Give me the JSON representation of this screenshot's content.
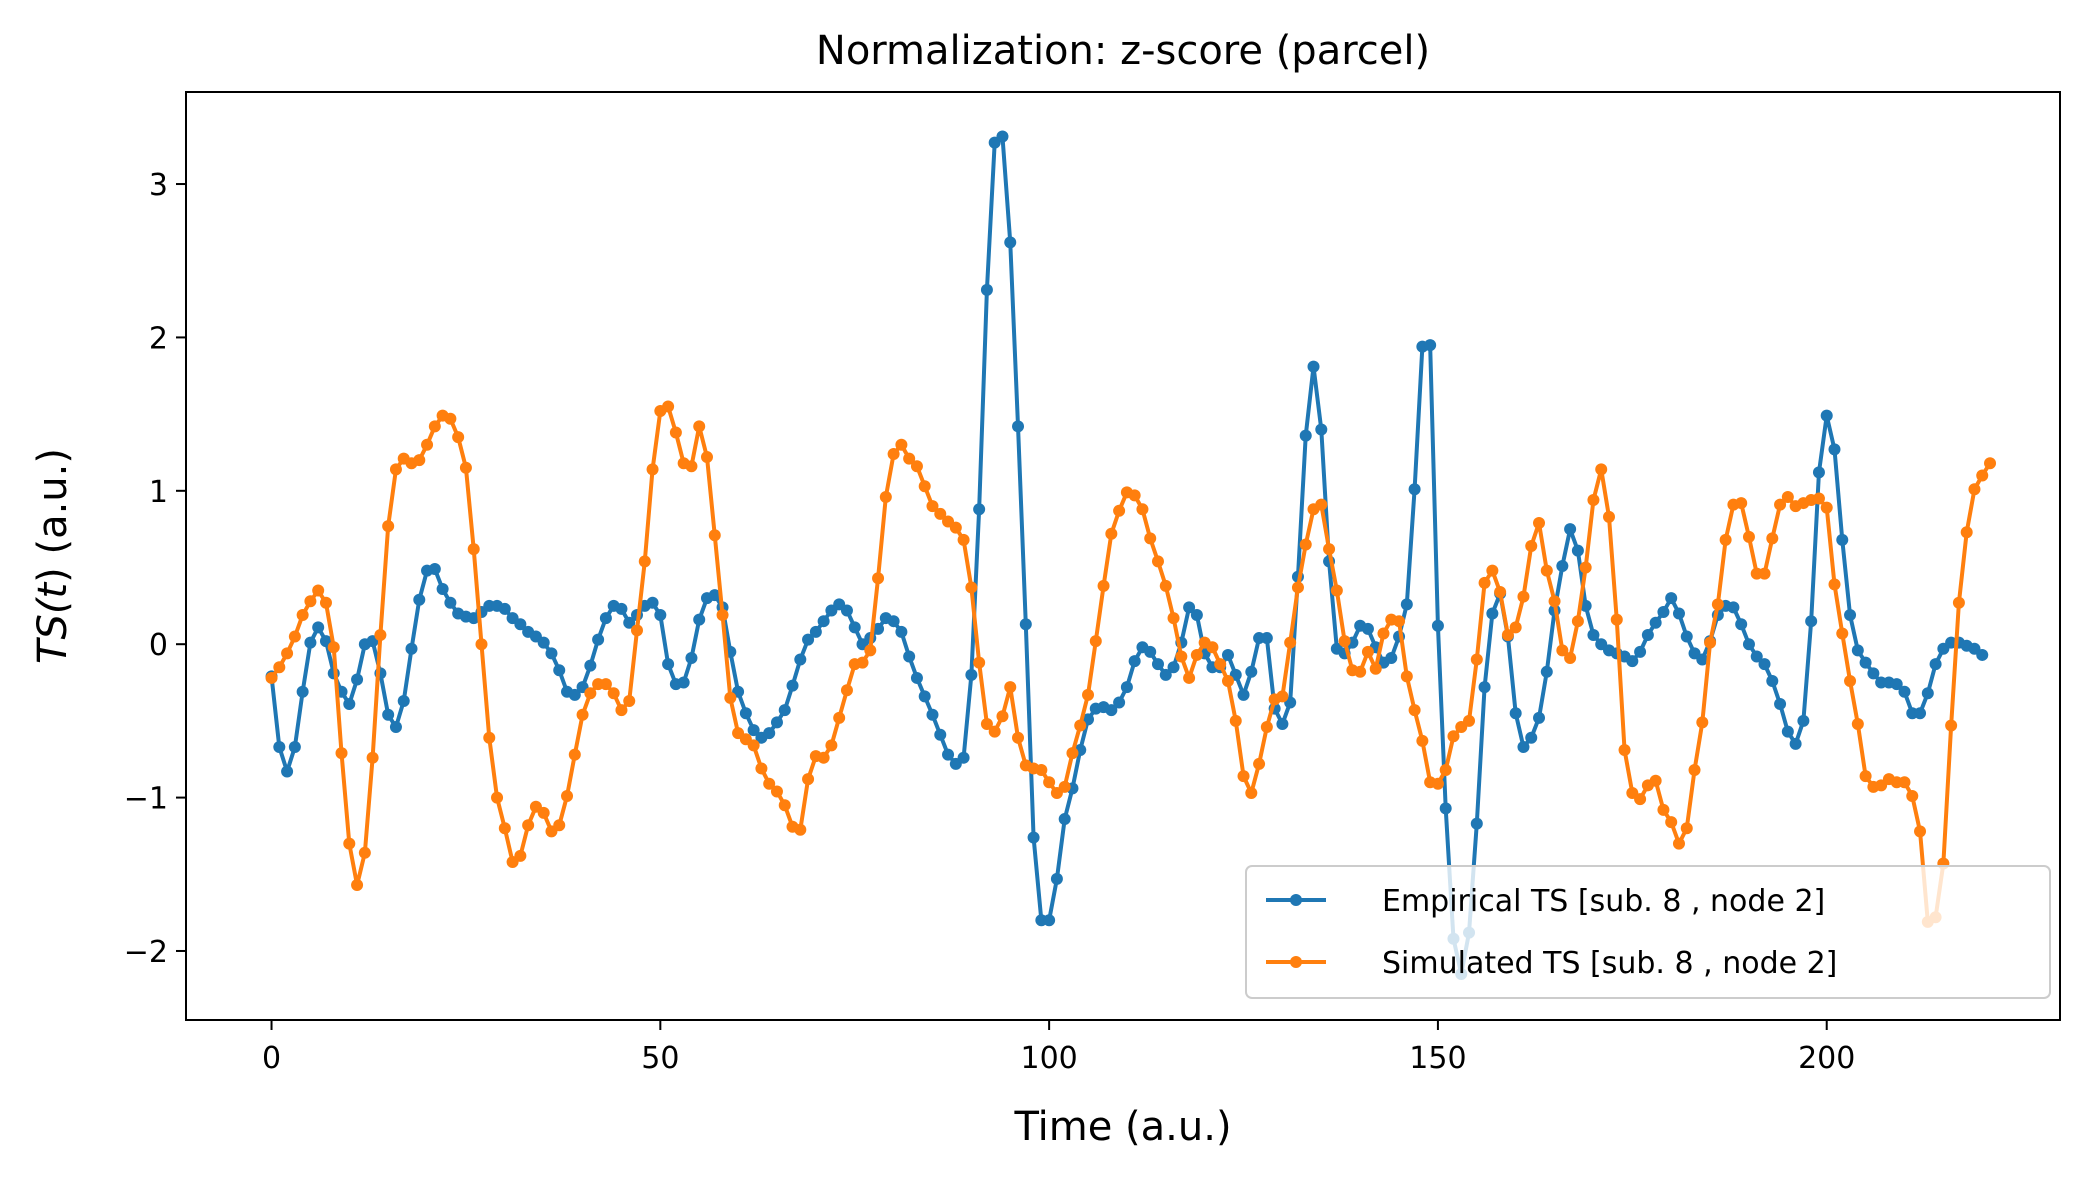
{
  "chart_data": {
    "type": "line",
    "title": "Normalization: z-score (parcel)",
    "xlabel": "Time (a.u.)",
    "ylabel_prefix": "TS(",
    "ylabel_var": "t",
    "ylabel_suffix": ") (a.u.)",
    "xlim": [
      -11,
      230
    ],
    "ylim": [
      -2.45,
      3.6
    ],
    "xticks": [
      0,
      50,
      100,
      150,
      200
    ],
    "xtick_labels": [
      "0",
      "50",
      "100",
      "150",
      "200"
    ],
    "yticks": [
      -2,
      -1,
      0,
      1,
      2,
      3
    ],
    "ytick_labels": [
      "−2",
      "−1",
      "0",
      "1",
      "2",
      "3"
    ],
    "grid": false,
    "legend_position": "lower right",
    "series": [
      {
        "name": "Empirical TS [sub. 8 , node 2]",
        "color": "#1f77b4",
        "x_start": 0,
        "x_step": 1,
        "values": [
          -0.21,
          -0.67,
          -0.83,
          -0.67,
          -0.31,
          0.01,
          0.11,
          0.02,
          -0.19,
          -0.31,
          -0.39,
          -0.23,
          0.0,
          0.02,
          -0.19,
          -0.46,
          -0.54,
          -0.37,
          -0.03,
          0.29,
          0.48,
          0.49,
          0.36,
          0.27,
          0.2,
          0.18,
          0.17,
          0.21,
          0.25,
          0.25,
          0.23,
          0.17,
          0.13,
          0.08,
          0.05,
          0.01,
          -0.06,
          -0.17,
          -0.31,
          -0.33,
          -0.28,
          -0.14,
          0.03,
          0.17,
          0.25,
          0.23,
          0.14,
          0.19,
          0.25,
          0.27,
          0.19,
          -0.13,
          -0.26,
          -0.25,
          -0.09,
          0.16,
          0.3,
          0.32,
          0.24,
          -0.05,
          -0.31,
          -0.45,
          -0.56,
          -0.61,
          -0.58,
          -0.51,
          -0.43,
          -0.27,
          -0.1,
          0.03,
          0.08,
          0.15,
          0.22,
          0.26,
          0.22,
          0.11,
          0.0,
          0.04,
          0.1,
          0.17,
          0.15,
          0.08,
          -0.08,
          -0.22,
          -0.34,
          -0.46,
          -0.59,
          -0.72,
          -0.78,
          -0.74,
          -0.2,
          0.88,
          2.31,
          3.27,
          3.31,
          2.62,
          1.42,
          0.13,
          -1.26,
          -1.8,
          -1.8,
          -1.53,
          -1.14,
          -0.94,
          -0.69,
          -0.49,
          -0.42,
          -0.41,
          -0.43,
          -0.38,
          -0.28,
          -0.11,
          -0.02,
          -0.05,
          -0.13,
          -0.2,
          -0.15,
          0.01,
          0.24,
          0.19,
          -0.06,
          -0.15,
          -0.15,
          -0.07,
          -0.2,
          -0.33,
          -0.18,
          0.04,
          0.04,
          -0.42,
          -0.52,
          -0.38,
          0.44,
          1.36,
          1.81,
          1.4,
          0.54,
          -0.03,
          -0.06,
          0.01,
          0.12,
          0.1,
          -0.02,
          -0.12,
          -0.09,
          0.05,
          0.26,
          1.01,
          1.94,
          1.95,
          0.12,
          -1.07,
          -1.92,
          -2.15,
          -1.88,
          -1.17,
          -0.28,
          0.2,
          0.33,
          0.05,
          -0.45,
          -0.67,
          -0.61,
          -0.48,
          -0.18,
          0.22,
          0.51,
          0.75,
          0.61,
          0.25,
          0.06,
          0.0,
          -0.04,
          -0.06,
          -0.08,
          -0.11,
          -0.05,
          0.06,
          0.14,
          0.21,
          0.3,
          0.2,
          0.05,
          -0.06,
          -0.1,
          0.02,
          0.19,
          0.25,
          0.24,
          0.13,
          0.0,
          -0.08,
          -0.13,
          -0.24,
          -0.39,
          -0.57,
          -0.65,
          -0.5,
          0.15,
          1.12,
          1.49,
          1.27,
          0.68,
          0.19,
          -0.04,
          -0.12,
          -0.19,
          -0.25,
          -0.25,
          -0.26,
          -0.31,
          -0.45,
          -0.45,
          -0.32,
          -0.13,
          -0.03,
          0.01,
          0.01,
          -0.01,
          -0.03,
          -0.07
        ]
      },
      {
        "name": "Simulated TS [sub. 8 , node 2]",
        "color": "#ff7f0e",
        "x_start": 0,
        "x_step": 1,
        "values": [
          -0.22,
          -0.15,
          -0.06,
          0.05,
          0.19,
          0.28,
          0.35,
          0.27,
          -0.02,
          -0.71,
          -1.3,
          -1.57,
          -1.36,
          -0.74,
          0.06,
          0.77,
          1.14,
          1.21,
          1.18,
          1.2,
          1.3,
          1.42,
          1.49,
          1.47,
          1.35,
          1.15,
          0.62,
          0.0,
          -0.61,
          -1.0,
          -1.2,
          -1.42,
          -1.38,
          -1.18,
          -1.06,
          -1.1,
          -1.22,
          -1.18,
          -0.99,
          -0.72,
          -0.46,
          -0.32,
          -0.26,
          -0.26,
          -0.32,
          -0.43,
          -0.37,
          0.09,
          0.54,
          1.14,
          1.52,
          1.55,
          1.38,
          1.18,
          1.16,
          1.42,
          1.22,
          0.71,
          0.19,
          -0.35,
          -0.58,
          -0.62,
          -0.66,
          -0.81,
          -0.91,
          -0.96,
          -1.05,
          -1.19,
          -1.21,
          -0.88,
          -0.73,
          -0.74,
          -0.66,
          -0.48,
          -0.3,
          -0.13,
          -0.12,
          -0.04,
          0.43,
          0.96,
          1.24,
          1.3,
          1.21,
          1.16,
          1.03,
          0.9,
          0.85,
          0.8,
          0.76,
          0.68,
          0.37,
          -0.12,
          -0.52,
          -0.57,
          -0.47,
          -0.28,
          -0.61,
          -0.79,
          -0.81,
          -0.82,
          -0.9,
          -0.97,
          -0.93,
          -0.71,
          -0.53,
          -0.33,
          0.02,
          0.38,
          0.72,
          0.87,
          0.99,
          0.97,
          0.88,
          0.69,
          0.54,
          0.38,
          0.17,
          -0.08,
          -0.22,
          -0.07,
          0.01,
          -0.02,
          -0.13,
          -0.24,
          -0.5,
          -0.86,
          -0.97,
          -0.78,
          -0.54,
          -0.36,
          -0.34,
          0.01,
          0.37,
          0.65,
          0.88,
          0.91,
          0.62,
          0.35,
          0.02,
          -0.17,
          -0.18,
          -0.05,
          -0.16,
          0.07,
          0.16,
          0.15,
          -0.21,
          -0.43,
          -0.63,
          -0.9,
          -0.91,
          -0.82,
          -0.6,
          -0.54,
          -0.5,
          -0.1,
          0.4,
          0.48,
          0.34,
          0.06,
          0.11,
          0.31,
          0.64,
          0.79,
          0.48,
          0.28,
          -0.04,
          -0.09,
          0.15,
          0.5,
          0.94,
          1.14,
          0.83,
          0.16,
          -0.69,
          -0.97,
          -1.01,
          -0.92,
          -0.89,
          -1.08,
          -1.16,
          -1.3,
          -1.2,
          -0.82,
          -0.51,
          0.01,
          0.26,
          0.68,
          0.91,
          0.92,
          0.7,
          0.46,
          0.46,
          0.69,
          0.91,
          0.96,
          0.9,
          0.92,
          0.94,
          0.95,
          0.89,
          0.39,
          0.07,
          -0.24,
          -0.52,
          -0.86,
          -0.93,
          -0.92,
          -0.88,
          -0.9,
          -0.9,
          -0.99,
          -1.22,
          -1.81,
          -1.78,
          -1.43,
          -0.53,
          0.27,
          0.73,
          1.01,
          1.1,
          1.18
        ]
      }
    ]
  }
}
